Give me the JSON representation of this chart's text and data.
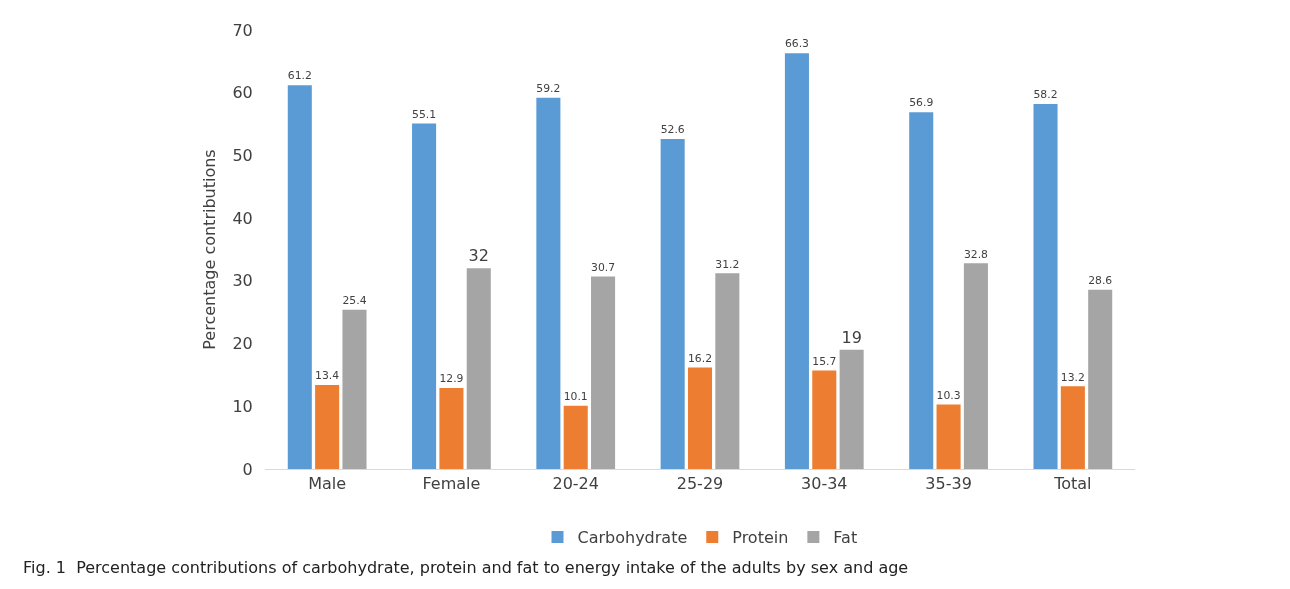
{
  "chart_data": {
    "type": "bar",
    "ylabel": "Percentage contributions",
    "categories": [
      "Male",
      "Female",
      "20-24",
      "25-29",
      "30-34",
      "35-39",
      "Total"
    ],
    "series": [
      {
        "name": "Carbohydrate",
        "color": "#5b9bd5",
        "values": [
          61.2,
          55.1,
          59.2,
          52.6,
          66.3,
          56.9,
          58.2
        ]
      },
      {
        "name": "Protein",
        "color": "#ed7d31",
        "values": [
          13.4,
          12.9,
          10.1,
          16.2,
          15.7,
          10.3,
          13.2
        ]
      },
      {
        "name": "Fat",
        "color": "#a5a5a5",
        "values": [
          25.4,
          32,
          30.7,
          31.2,
          19,
          32.8,
          28.6
        ]
      }
    ],
    "ylim": [
      0,
      70
    ],
    "yticks": [
      0,
      10,
      20,
      30,
      40,
      50,
      60,
      70
    ],
    "grid": false,
    "legend": "bottom",
    "data_labels": true,
    "annotations": [
      "Fig. 1  Percentage contributions of carbohydrate, protein and fat to energy intake of the adults by sex and age"
    ]
  }
}
